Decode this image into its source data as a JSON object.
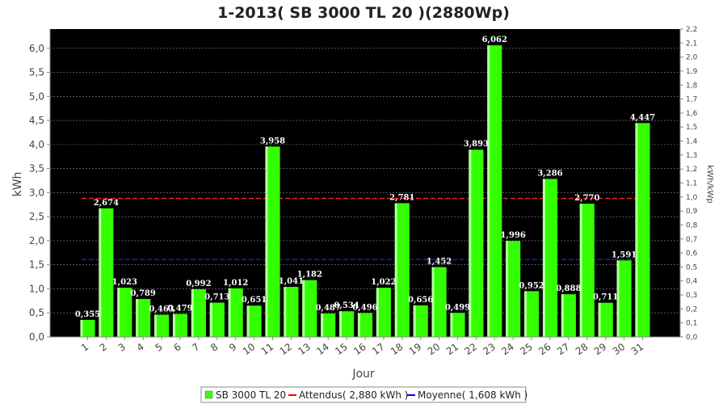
{
  "chart_data": {
    "type": "bar",
    "title": "1-2013( SB 3000 TL 20 )(2880Wp)",
    "xlabel": "Jour",
    "ylabel": "kWh",
    "y2label": "kWh/kWp",
    "ylim": [
      0,
      6.4
    ],
    "y2lim": [
      0,
      2.2
    ],
    "yticks": [
      "0,0",
      "0,5",
      "1,0",
      "1,5",
      "2,0",
      "2,5",
      "3,0",
      "3,5",
      "4,0",
      "4,5",
      "5,0",
      "5,5",
      "6,0"
    ],
    "y2ticks": [
      "0,0",
      "0,1",
      "0,2",
      "0,3",
      "0,4",
      "0,5",
      "0,6",
      "0,7",
      "0,8",
      "0,9",
      "1,0",
      "1,1",
      "1,2",
      "1,3",
      "1,4",
      "1,5",
      "1,6",
      "1,7",
      "1,8",
      "1,9",
      "2,0",
      "2,1",
      "2,2"
    ],
    "categories": [
      "1",
      "2",
      "3",
      "4",
      "5",
      "6",
      "7",
      "8",
      "9",
      "10",
      "11",
      "12",
      "13",
      "14",
      "15",
      "16",
      "17",
      "18",
      "19",
      "20",
      "21",
      "22",
      "23",
      "24",
      "25",
      "26",
      "27",
      "28",
      "29",
      "30",
      "31"
    ],
    "series": [
      {
        "name": "SB 3000 TL 20",
        "color": "#33ff00",
        "values": [
          0.355,
          2.674,
          1.023,
          0.789,
          0.463,
          0.479,
          0.992,
          0.713,
          1.012,
          0.651,
          3.958,
          1.041,
          1.182,
          0.487,
          0.534,
          0.496,
          1.022,
          2.781,
          0.656,
          1.452,
          0.499,
          3.893,
          6.062,
          1.996,
          0.952,
          3.286,
          0.888,
          2.77,
          0.711,
          1.591,
          4.447
        ],
        "labels": [
          "0,355",
          "2,674",
          "1,023",
          "0,789",
          "0,463",
          "0,479",
          "0,992",
          "0,713",
          "1,012",
          "0,651",
          "3,958",
          "1,041",
          "1,182",
          "0,487",
          "0,534",
          "0,496",
          "1,022",
          "2,781",
          "0,656",
          "1,452",
          "0,499",
          "3,893",
          "6,062",
          "1,996",
          "0,952",
          "3,286",
          "0,888",
          "2,770",
          "0,711",
          "1,591",
          "4,447"
        ]
      }
    ],
    "reference_lines": [
      {
        "name": "Attendus( 2,880 kWh )",
        "value": 2.88,
        "color": "#ff2020",
        "style": "dashed"
      },
      {
        "name": "Moyenne( 1,608 kWh )",
        "value": 1.608,
        "color": "#2020ff",
        "style": "dashed"
      }
    ],
    "legend": {
      "position": "bottom",
      "items": [
        {
          "label": "SB 3000 TL 20",
          "color": "#33ff00",
          "kind": "box"
        },
        {
          "label": "Attendus( 2,880 kWh )",
          "color": "#ff0000",
          "kind": "line"
        },
        {
          "label": "Moyenne( 1,608 kWh )",
          "color": "#0000ff",
          "kind": "line"
        }
      ]
    },
    "plot_background": "#000000",
    "grid": true
  }
}
